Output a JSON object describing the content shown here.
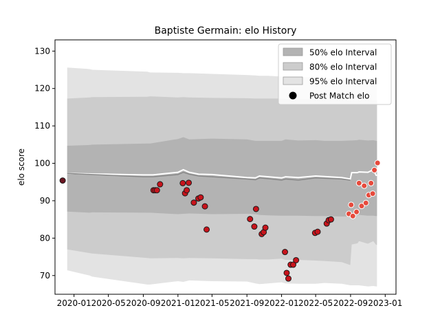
{
  "chart_data": {
    "type": "scatter",
    "title": "Baptiste Germain: elo History",
    "xlabel": "",
    "ylabel": "elo score",
    "x_range": [
      "2019-10-26",
      "2023-02-08"
    ],
    "ylim": [
      65,
      133
    ],
    "x_ticks": [
      "2020-01",
      "2020-05",
      "2020-09",
      "2021-01",
      "2021-05",
      "2021-09",
      "2022-01",
      "2022-05",
      "2022-09",
      "2023-01"
    ],
    "y_ticks": [
      70,
      80,
      90,
      100,
      110,
      120,
      130
    ],
    "grid": false,
    "legend_position": "top-right",
    "legend": [
      {
        "label": "50% elo Interval",
        "kind": "patch",
        "color": "#b3b3b3"
      },
      {
        "label": "80% elo Interval",
        "kind": "patch",
        "color": "#cccccc"
      },
      {
        "label": "95% elo Interval",
        "kind": "patch",
        "color": "#e3e3e3"
      },
      {
        "label": "Post Match elo",
        "kind": "marker",
        "color": "#000000"
      }
    ],
    "colors": {
      "band50": "#b3b3b3",
      "band80": "#cccccc",
      "band95": "#e3e3e3",
      "history_line": "#888888",
      "projection_line": "#ffffff",
      "past_match": "#c8141c",
      "recent_match": "#e64a3c",
      "first_match": "#6b1520"
    },
    "bands": {
      "dates": [
        "2019-12-08",
        "2020-02-25",
        "2020-03-05",
        "2020-09-15",
        "2020-09-25",
        "2021-01-01",
        "2021-01-20",
        "2021-02-10",
        "2021-05-01",
        "2021-09-01",
        "2021-10-01",
        "2021-10-15",
        "2021-11-15",
        "2022-01-01",
        "2022-01-15",
        "2022-03-01",
        "2022-05-01",
        "2022-06-01",
        "2022-08-01",
        "2022-08-31",
        "2022-09-05",
        "2022-09-25",
        "2022-10-01",
        "2022-11-01",
        "2022-11-20",
        "2022-11-30",
        "2022-12-03"
      ],
      "p95_lo": [
        71.4,
        70.0,
        69.7,
        67.6,
        67.6,
        68.5,
        68.3,
        68.7,
        68.5,
        68.4,
        67.9,
        67.7,
        67.9,
        68.2,
        67.9,
        67.8,
        67.8,
        68.0,
        67.8,
        67.4,
        67.4,
        67.4,
        67.4,
        67.1,
        67.2,
        67.1,
        67.1
      ],
      "p80_lo": [
        77.0,
        76.0,
        75.9,
        74.7,
        74.6,
        74.7,
        74.6,
        74.7,
        74.6,
        74.4,
        74.4,
        74.3,
        74.3,
        74.5,
        74.2,
        74.2,
        74.0,
        73.9,
        73.6,
        72.8,
        78.3,
        78.6,
        79.2,
        78.5,
        79.2,
        78.2,
        78.2
      ],
      "p50_lo": [
        87.1,
        86.8,
        86.9,
        86.8,
        86.8,
        86.4,
        86.5,
        86.6,
        86.4,
        86.5,
        86.4,
        86.2,
        86.1,
        86.0,
        86.0,
        86.0,
        85.9,
        85.9,
        85.8,
        85.8,
        86.2,
        86.1,
        86.2,
        86.0,
        86.0,
        85.9,
        85.9
      ],
      "p50_hi": [
        104.7,
        104.9,
        105.0,
        105.3,
        105.3,
        106.5,
        107.0,
        106.4,
        106.6,
        106.4,
        106.0,
        106.0,
        106.0,
        106.0,
        106.4,
        106.1,
        106.2,
        106.0,
        106.0,
        106.1,
        106.1,
        106.2,
        106.3,
        106.1,
        106.2,
        106.0,
        106.0
      ],
      "p80_hi": [
        117.3,
        117.6,
        117.7,
        117.8,
        117.9,
        117.6,
        117.7,
        117.6,
        117.5,
        117.4,
        117.3,
        117.3,
        117.3,
        117.3,
        117.2,
        117.1,
        117.1,
        117.1,
        117.0,
        116.9,
        116.9,
        116.9,
        116.9,
        117.0,
        116.9,
        116.8,
        116.8
      ],
      "p95_hi": [
        125.6,
        125.2,
        125.0,
        124.5,
        124.3,
        124.2,
        124.1,
        124.1,
        123.9,
        123.6,
        123.5,
        123.4,
        123.4,
        123.2,
        123.1,
        123.1,
        123.0,
        122.7,
        122.6,
        122.4,
        122.6,
        122.4,
        122.5,
        122.4,
        122.2,
        122.3,
        122.3
      ]
    },
    "history_line": [
      [
        "2019-12-08",
        97.3
      ],
      [
        "2020-08-31",
        96.4
      ],
      [
        "2020-10-05",
        96.4
      ],
      [
        "2021-01-01",
        97.0
      ],
      [
        "2021-01-20",
        97.6
      ],
      [
        "2021-02-10",
        97.1
      ],
      [
        "2021-03-15",
        96.6
      ],
      [
        "2021-05-01",
        96.4
      ],
      [
        "2021-09-01",
        95.8
      ],
      [
        "2021-10-01",
        95.6
      ],
      [
        "2021-10-15",
        96.1
      ],
      [
        "2021-11-15",
        95.9
      ],
      [
        "2022-01-01",
        95.5
      ],
      [
        "2022-01-15",
        95.8
      ],
      [
        "2022-03-01",
        95.5
      ],
      [
        "2022-05-01",
        96.1
      ],
      [
        "2022-08-01",
        95.8
      ],
      [
        "2022-08-31",
        95.5
      ]
    ],
    "projection_line": [
      [
        "2019-12-08",
        97.3
      ],
      [
        "2020-08-31",
        96.9
      ],
      [
        "2020-10-05",
        96.9
      ],
      [
        "2021-01-01",
        97.6
      ],
      [
        "2021-01-20",
        98.3
      ],
      [
        "2021-02-10",
        97.6
      ],
      [
        "2021-03-15",
        97.1
      ],
      [
        "2021-05-01",
        97.0
      ],
      [
        "2021-09-01",
        96.2
      ],
      [
        "2021-10-01",
        96.1
      ],
      [
        "2021-10-15",
        96.6
      ],
      [
        "2021-11-15",
        96.4
      ],
      [
        "2022-01-01",
        96.1
      ],
      [
        "2022-01-15",
        96.4
      ],
      [
        "2022-03-01",
        96.2
      ],
      [
        "2022-05-01",
        96.6
      ],
      [
        "2022-08-01",
        96.2
      ],
      [
        "2022-08-31",
        95.8
      ],
      [
        "2022-09-05",
        97.5
      ],
      [
        "2022-09-25",
        97.5
      ],
      [
        "2022-10-01",
        97.7
      ],
      [
        "2022-11-01",
        97.6
      ],
      [
        "2022-11-20",
        98.3
      ],
      [
        "2022-11-30",
        96.8
      ],
      [
        "2022-12-03",
        96.8
      ]
    ],
    "post_match_elo": [
      {
        "date": "2019-11-22",
        "elo": 95.4,
        "group": "first"
      },
      {
        "date": "2020-10-07",
        "elo": 92.8,
        "group": "past"
      },
      {
        "date": "2020-10-13",
        "elo": 92.8,
        "group": "past"
      },
      {
        "date": "2020-10-19",
        "elo": 92.8,
        "group": "past"
      },
      {
        "date": "2020-10-30",
        "elo": 94.4,
        "group": "past"
      },
      {
        "date": "2021-01-18",
        "elo": 94.7,
        "group": "past"
      },
      {
        "date": "2021-01-26",
        "elo": 92.0,
        "group": "past"
      },
      {
        "date": "2021-02-01",
        "elo": 92.8,
        "group": "past"
      },
      {
        "date": "2021-02-08",
        "elo": 94.8,
        "group": "past"
      },
      {
        "date": "2021-02-26",
        "elo": 89.5,
        "group": "past"
      },
      {
        "date": "2021-03-14",
        "elo": 90.6,
        "group": "past"
      },
      {
        "date": "2021-03-22",
        "elo": 90.9,
        "group": "past"
      },
      {
        "date": "2021-04-06",
        "elo": 88.5,
        "group": "past"
      },
      {
        "date": "2021-04-12",
        "elo": 82.3,
        "group": "past"
      },
      {
        "date": "2021-09-12",
        "elo": 85.1,
        "group": "past"
      },
      {
        "date": "2021-09-27",
        "elo": 83.1,
        "group": "past"
      },
      {
        "date": "2021-10-03",
        "elo": 87.8,
        "group": "past"
      },
      {
        "date": "2021-10-23",
        "elo": 81.1,
        "group": "past"
      },
      {
        "date": "2021-10-30",
        "elo": 81.6,
        "group": "past"
      },
      {
        "date": "2021-11-05",
        "elo": 82.8,
        "group": "past"
      },
      {
        "date": "2022-01-13",
        "elo": 76.3,
        "group": "past"
      },
      {
        "date": "2022-01-19",
        "elo": 70.7,
        "group": "past"
      },
      {
        "date": "2022-01-25",
        "elo": 69.2,
        "group": "past"
      },
      {
        "date": "2022-02-02",
        "elo": 72.9,
        "group": "past"
      },
      {
        "date": "2022-02-11",
        "elo": 72.9,
        "group": "past"
      },
      {
        "date": "2022-02-21",
        "elo": 74.1,
        "group": "past"
      },
      {
        "date": "2022-04-29",
        "elo": 81.4,
        "group": "past"
      },
      {
        "date": "2022-05-08",
        "elo": 81.7,
        "group": "past"
      },
      {
        "date": "2022-06-09",
        "elo": 83.9,
        "group": "past"
      },
      {
        "date": "2022-06-16",
        "elo": 84.8,
        "group": "past"
      },
      {
        "date": "2022-06-24",
        "elo": 85.0,
        "group": "past"
      },
      {
        "date": "2022-08-26",
        "elo": 86.5,
        "group": "recent"
      },
      {
        "date": "2022-09-03",
        "elo": 88.9,
        "group": "recent"
      },
      {
        "date": "2022-09-09",
        "elo": 85.9,
        "group": "recent"
      },
      {
        "date": "2022-09-22",
        "elo": 87.0,
        "group": "recent"
      },
      {
        "date": "2022-10-01",
        "elo": 94.7,
        "group": "recent"
      },
      {
        "date": "2022-10-10",
        "elo": 88.6,
        "group": "recent"
      },
      {
        "date": "2022-10-19",
        "elo": 94.0,
        "group": "recent"
      },
      {
        "date": "2022-10-25",
        "elo": 89.4,
        "group": "recent"
      },
      {
        "date": "2022-11-04",
        "elo": 91.5,
        "group": "recent"
      },
      {
        "date": "2022-11-12",
        "elo": 94.7,
        "group": "recent"
      },
      {
        "date": "2022-11-18",
        "elo": 91.9,
        "group": "recent"
      },
      {
        "date": "2022-11-24",
        "elo": 98.2,
        "group": "recent"
      },
      {
        "date": "2022-12-05",
        "elo": 100.1,
        "group": "recent"
      }
    ]
  }
}
